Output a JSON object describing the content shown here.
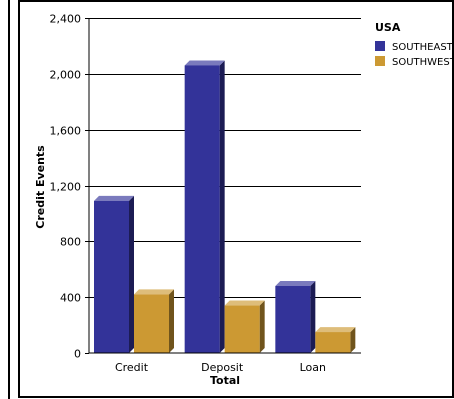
{
  "chart_data": {
    "type": "bar",
    "categories": [
      "Credit",
      "Deposit",
      "Loan"
    ],
    "series": [
      {
        "name": "SOUTHEAST",
        "values": [
          1090,
          2060,
          480
        ],
        "color": "#333399"
      },
      {
        "name": "SOUTHWEST",
        "values": [
          420,
          340,
          150
        ],
        "color": "#CC9933"
      }
    ],
    "xlabel": "Total",
    "ylabel": "Credit Events",
    "ylim": [
      0,
      2400
    ],
    "yticks": [
      0,
      400,
      800,
      1200,
      1600,
      2000,
      2400
    ],
    "ytick_labels": [
      "0",
      "400",
      "800",
      "1,200",
      "1,600",
      "2,000",
      "2,400"
    ],
    "legend_title": "USA",
    "legend_position": "top-right",
    "grid": true
  }
}
